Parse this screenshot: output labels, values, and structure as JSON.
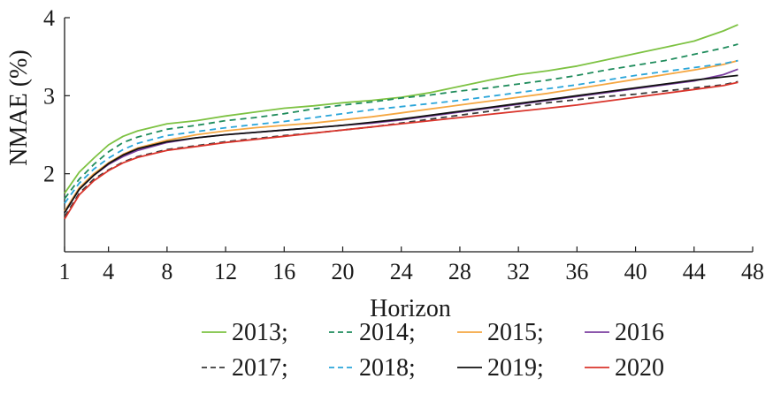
{
  "chart_data": {
    "type": "line",
    "xlabel": "Horizon",
    "ylabel": "NMAE (%)",
    "xlim": [
      1,
      48
    ],
    "ylim": [
      1,
      4
    ],
    "xticks": [
      1,
      4,
      8,
      12,
      16,
      20,
      24,
      28,
      32,
      36,
      40,
      44,
      48
    ],
    "yticks": [
      2,
      3,
      4
    ],
    "grid": false,
    "legend_placement": "bottom",
    "legend_rows": [
      [
        {
          "label": "2013",
          "sep": ";"
        },
        {
          "label": "2014",
          "sep": ";"
        },
        {
          "label": "2015",
          "sep": ";"
        },
        {
          "label": "2016",
          "sep": ""
        }
      ],
      [
        {
          "label": "2017",
          "sep": ";"
        },
        {
          "label": "2018",
          "sep": ";"
        },
        {
          "label": "2019",
          "sep": ";"
        },
        {
          "label": "2020",
          "sep": ""
        }
      ]
    ],
    "x": [
      1,
      2,
      3,
      4,
      5,
      6,
      8,
      10,
      12,
      14,
      16,
      18,
      20,
      22,
      24,
      26,
      28,
      30,
      32,
      34,
      36,
      38,
      40,
      42,
      44,
      46,
      47
    ],
    "series": [
      {
        "name": "2013",
        "color": "#7dc242",
        "dash": "solid",
        "values": [
          1.75,
          2.02,
          2.2,
          2.37,
          2.48,
          2.55,
          2.64,
          2.68,
          2.74,
          2.79,
          2.84,
          2.87,
          2.91,
          2.94,
          2.98,
          3.04,
          3.12,
          3.2,
          3.27,
          3.32,
          3.38,
          3.46,
          3.54,
          3.62,
          3.7,
          3.83,
          3.91
        ]
      },
      {
        "name": "2014",
        "color": "#1f8c5c",
        "dash": "dashed",
        "values": [
          1.68,
          1.93,
          2.12,
          2.28,
          2.4,
          2.47,
          2.57,
          2.62,
          2.68,
          2.72,
          2.77,
          2.83,
          2.88,
          2.92,
          2.97,
          3.01,
          3.06,
          3.1,
          3.15,
          3.2,
          3.26,
          3.33,
          3.39,
          3.45,
          3.53,
          3.61,
          3.66
        ]
      },
      {
        "name": "2015",
        "color": "#f5a742",
        "dash": "solid",
        "values": [
          1.52,
          1.82,
          2.0,
          2.14,
          2.25,
          2.33,
          2.43,
          2.5,
          2.55,
          2.59,
          2.62,
          2.65,
          2.69,
          2.73,
          2.78,
          2.83,
          2.88,
          2.93,
          2.98,
          3.03,
          3.09,
          3.15,
          3.21,
          3.27,
          3.33,
          3.4,
          3.45
        ]
      },
      {
        "name": "2016",
        "color": "#7b3fa0",
        "dash": "solid",
        "values": [
          1.5,
          1.8,
          1.98,
          2.12,
          2.22,
          2.3,
          2.4,
          2.46,
          2.5,
          2.53,
          2.56,
          2.59,
          2.62,
          2.65,
          2.69,
          2.74,
          2.79,
          2.84,
          2.89,
          2.94,
          2.99,
          3.04,
          3.09,
          3.14,
          3.19,
          3.27,
          3.34
        ]
      },
      {
        "name": "2017",
        "color": "#3a3a3a",
        "dash": "dashed",
        "values": [
          1.45,
          1.75,
          1.93,
          2.05,
          2.15,
          2.22,
          2.31,
          2.36,
          2.41,
          2.45,
          2.49,
          2.52,
          2.56,
          2.6,
          2.65,
          2.7,
          2.75,
          2.8,
          2.86,
          2.91,
          2.95,
          2.99,
          3.02,
          3.06,
          3.1,
          3.14,
          3.18
        ]
      },
      {
        "name": "2018",
        "color": "#2aa5d9",
        "dash": "dashed",
        "values": [
          1.62,
          1.88,
          2.06,
          2.2,
          2.31,
          2.39,
          2.49,
          2.54,
          2.59,
          2.63,
          2.67,
          2.72,
          2.77,
          2.82,
          2.86,
          2.9,
          2.94,
          2.99,
          3.04,
          3.09,
          3.14,
          3.2,
          3.26,
          3.31,
          3.36,
          3.41,
          3.45
        ]
      },
      {
        "name": "2019",
        "color": "#111111",
        "dash": "solid",
        "values": [
          1.5,
          1.8,
          1.98,
          2.13,
          2.24,
          2.32,
          2.41,
          2.46,
          2.5,
          2.53,
          2.56,
          2.59,
          2.62,
          2.66,
          2.7,
          2.75,
          2.8,
          2.85,
          2.9,
          2.95,
          3.0,
          3.05,
          3.1,
          3.15,
          3.2,
          3.24,
          3.26
        ]
      },
      {
        "name": "2020",
        "color": "#d9342b",
        "dash": "solid",
        "values": [
          1.42,
          1.73,
          1.91,
          2.04,
          2.14,
          2.21,
          2.3,
          2.35,
          2.4,
          2.44,
          2.48,
          2.52,
          2.56,
          2.6,
          2.64,
          2.68,
          2.72,
          2.76,
          2.8,
          2.84,
          2.88,
          2.93,
          2.98,
          3.03,
          3.08,
          3.13,
          3.17
        ]
      }
    ]
  }
}
